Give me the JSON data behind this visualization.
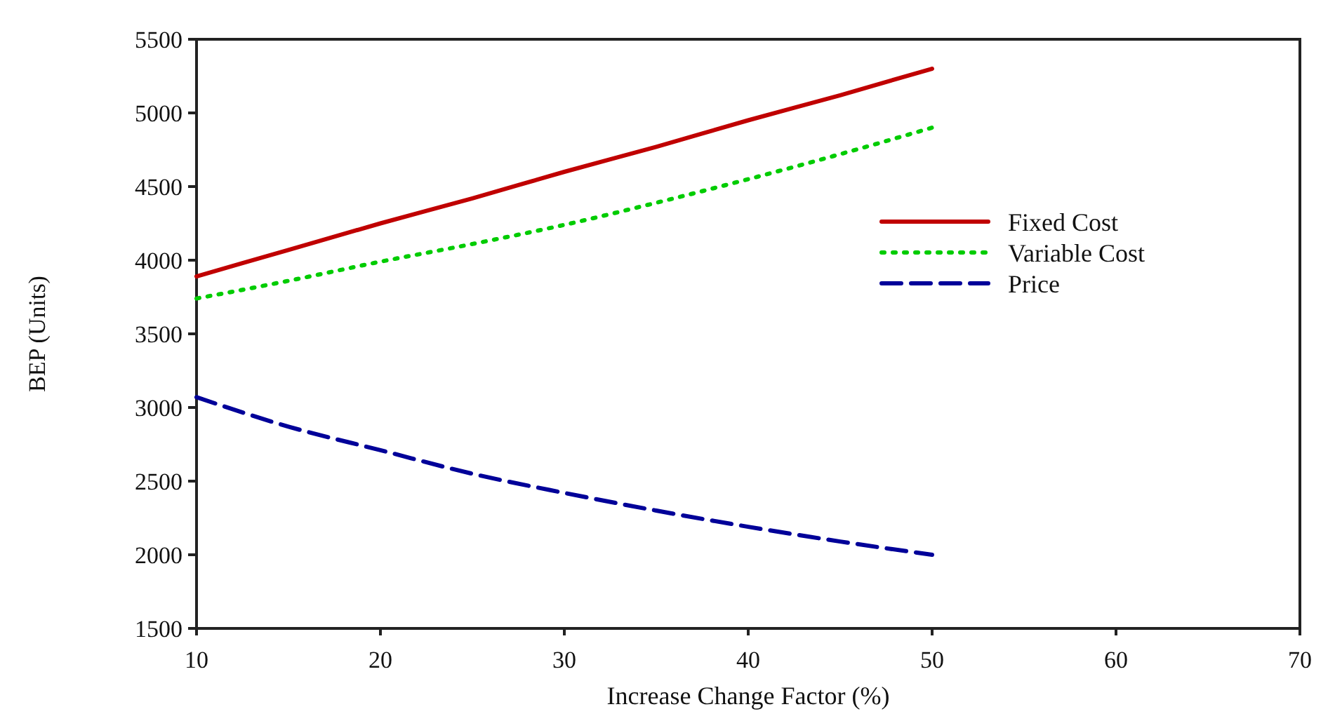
{
  "chart_data": {
    "type": "line",
    "xlabel": "Increase Change Factor (%)",
    "ylabel": "BEP (Units)",
    "x": [
      10,
      15,
      20,
      25,
      30,
      35,
      40,
      45,
      50
    ],
    "series": [
      {
        "name": "Fixed Cost",
        "color": "#c00000",
        "line_style": "solid",
        "values": [
          3890,
          4070,
          4250,
          4420,
          4600,
          4770,
          4950,
          5120,
          5300
        ]
      },
      {
        "name": "Variable Cost",
        "color": "#00cc00",
        "line_style": "dotted",
        "values": [
          3740,
          3860,
          3990,
          4110,
          4240,
          4390,
          4550,
          4720,
          4900
        ]
      },
      {
        "name": "Price",
        "color": "#000099",
        "line_style": "dashed",
        "values": [
          3070,
          2870,
          2710,
          2550,
          2420,
          2300,
          2190,
          2090,
          2000
        ]
      }
    ],
    "xlim": [
      10,
      70
    ],
    "xticks": [
      10,
      20,
      30,
      40,
      50,
      60,
      70
    ],
    "ylim": [
      1500,
      5500
    ],
    "yticks": [
      1500,
      2000,
      2500,
      3000,
      3500,
      4000,
      4500,
      5000,
      5500
    ],
    "grid": false,
    "legend": "right",
    "marker": "none"
  }
}
